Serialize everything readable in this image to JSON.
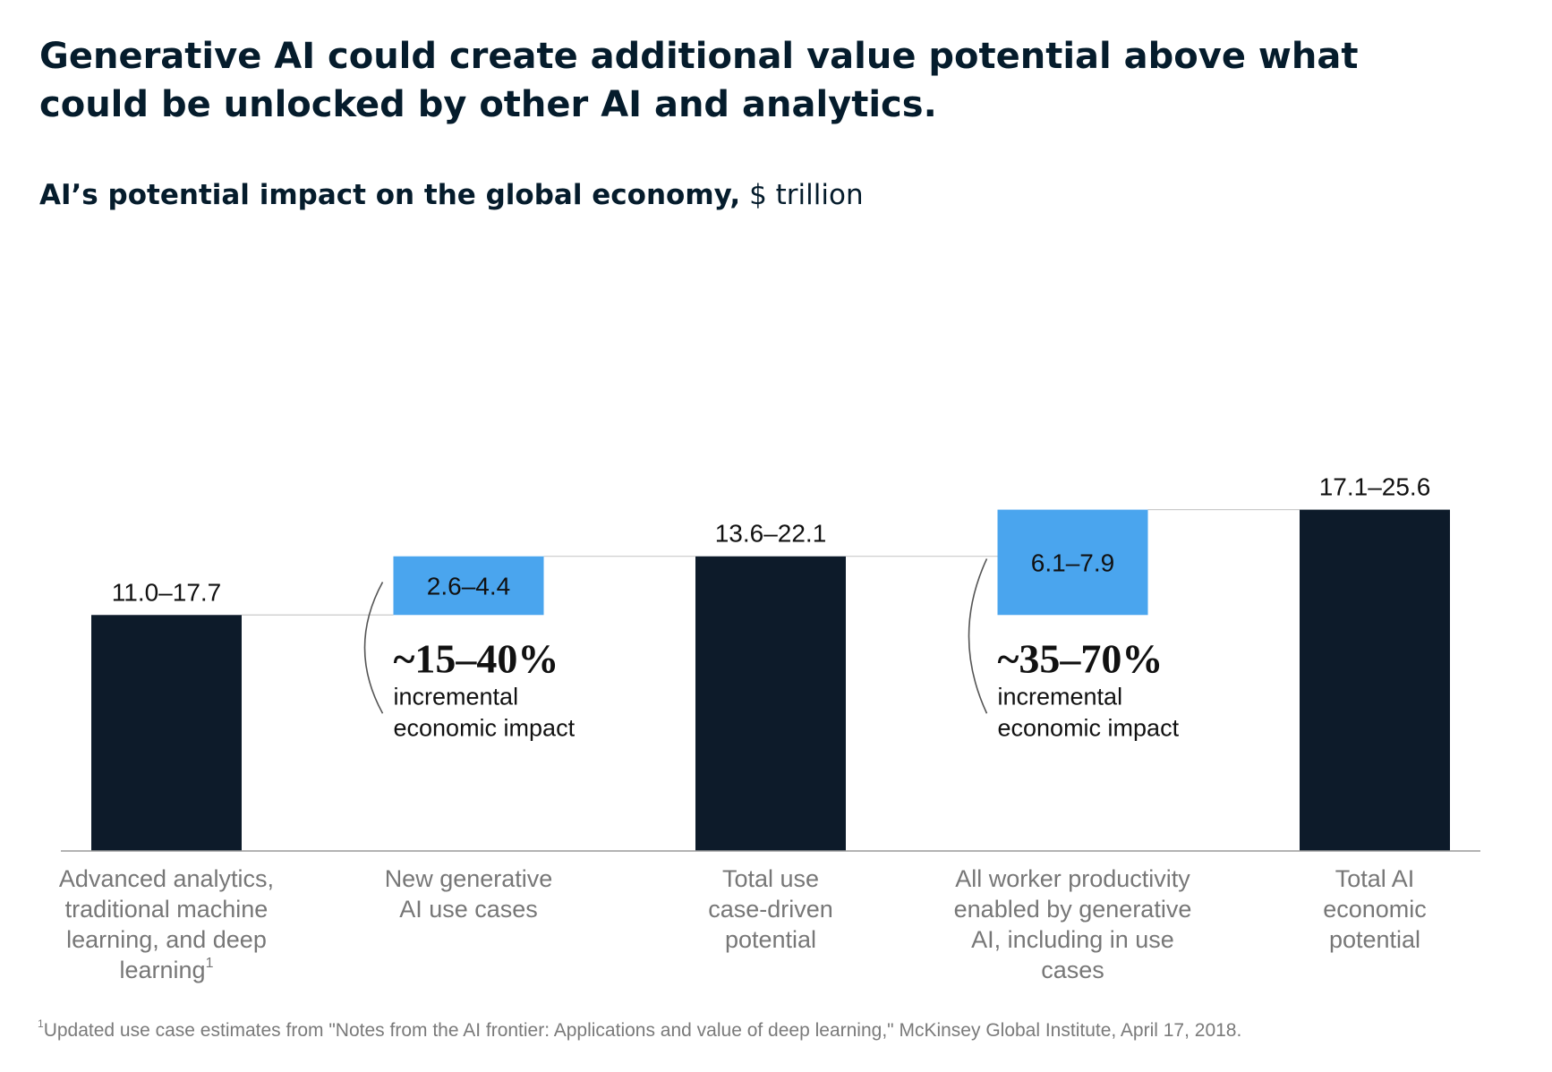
{
  "title": "Generative AI could create additional value potential above what could be unlocked by other AI and analytics.",
  "subtitle": {
    "main": "AI’s potential impact on the global economy,",
    "unit": "$ trillion"
  },
  "chart_data": {
    "type": "waterfall",
    "unit": "$ trillion",
    "y_basis": "upper estimate",
    "categories": [
      "Advanced analytics, traditional machine learning, and deep learning¹",
      "New generative AI use cases",
      "Total use case-driven potential",
      "All worker productivity enabled by generative AI, including in use cases",
      "Total AI economic potential"
    ],
    "category_lines": [
      [
        "Advanced analytics,",
        "traditional machine",
        "learning, and deep",
        "learning¹"
      ],
      [
        "New generative",
        "AI use cases"
      ],
      [
        "Total use",
        "case-driven",
        "potential"
      ],
      [
        "All worker productivity",
        "enabled by generative",
        "AI, including in use",
        "cases"
      ],
      [
        "Total AI",
        "economic",
        "potential"
      ]
    ],
    "bars": [
      {
        "kind": "total",
        "label": "11.0–17.7",
        "low": 11.0,
        "high": 17.7,
        "start": 0,
        "end": 17.7,
        "color": "#0d1b2a"
      },
      {
        "kind": "increment",
        "label": "2.6–4.4",
        "low": 2.6,
        "high": 4.4,
        "start": 17.7,
        "end": 22.1,
        "color": "#4aa5ee"
      },
      {
        "kind": "total",
        "label": "13.6–22.1",
        "low": 13.6,
        "high": 22.1,
        "start": 0,
        "end": 22.1,
        "color": "#0d1b2a"
      },
      {
        "kind": "increment",
        "label": "6.1–7.9",
        "low": 6.1,
        "high": 7.9,
        "start": 17.7,
        "end": 25.6,
        "color": "#4aa5ee"
      },
      {
        "kind": "total",
        "label": "17.1–25.6",
        "low": 17.1,
        "high": 25.6,
        "start": 0,
        "end": 25.6,
        "color": "#0d1b2a"
      }
    ],
    "annotations": [
      {
        "bar": 1,
        "value": "~15–40%",
        "lines": [
          "incremental",
          "economic impact"
        ]
      },
      {
        "bar": 3,
        "value": "~35–70%",
        "lines": [
          "incremental",
          "economic impact"
        ]
      }
    ]
  },
  "footnote": {
    "marker": "1",
    "text": "Updated use case estimates from \"Notes from the AI frontier: Applications and value of deep learning,\" McKinsey Global Institute, April 17, 2018."
  }
}
